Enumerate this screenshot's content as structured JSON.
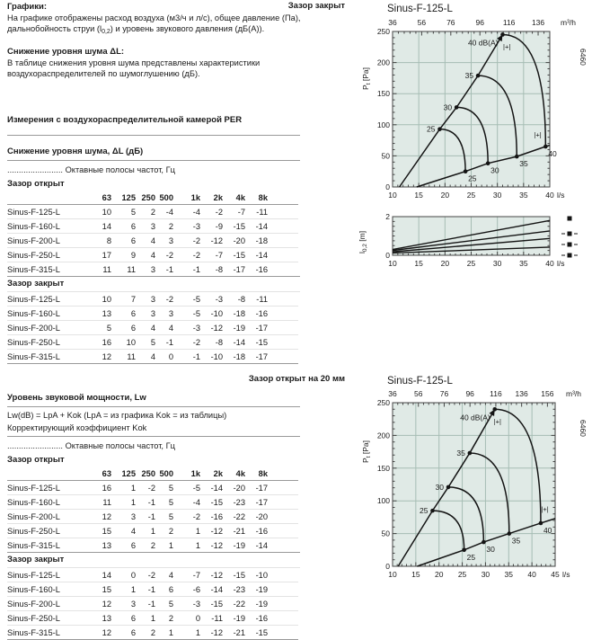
{
  "captions": {
    "top_right": "Зазор закрыт",
    "bottom_right": "Зазор открыт на 20 мм"
  },
  "intro": {
    "graphs_heading": "Графики:",
    "graphs_line1": "На графике отображены расход воздуха (м3/ч и л/с), общее давление (Па),",
    "graphs_line2_pre": "дальнобойность струи (l",
    "graphs_line2_sub": "0,2",
    "graphs_line2_post": ") и уровень звукового давления (дБ(А)).",
    "noise_heading": "Снижение уровня шума ΔL:",
    "noise_line1": "В таблице снижения уровня шума представлены характеристики",
    "noise_line2": "воздухораспределителей по шумоглушению (дБ).",
    "measurement_heading": "Измерения с воздухораспределительной камерой PER"
  },
  "octave_headers": [
    "63",
    "125",
    "250",
    "500",
    "1k",
    "2k",
    "4k",
    "8k"
  ],
  "table1": {
    "title": "Снижение уровня шума, ΔL (дБ)",
    "octave_note": "........................ Октавные полосы частот, Гц",
    "open_label": "Зазор открыт",
    "closed_label": "Зазор закрыт",
    "open_rows": [
      {
        "name": "Sinus-F-125-L",
        "values": [
          10,
          5,
          2,
          -4,
          -4,
          -2,
          -7,
          -11
        ]
      },
      {
        "name": "Sinus-F-160-L",
        "values": [
          14,
          6,
          3,
          2,
          -3,
          -9,
          -15,
          -14
        ]
      },
      {
        "name": "Sinus-F-200-L",
        "values": [
          8,
          6,
          4,
          3,
          -2,
          -12,
          -20,
          -18
        ]
      },
      {
        "name": "Sinus-F-250-L",
        "values": [
          17,
          9,
          4,
          -2,
          -2,
          -7,
          -15,
          -14
        ]
      },
      {
        "name": "Sinus-F-315-L",
        "values": [
          11,
          11,
          3,
          -1,
          -1,
          -8,
          -17,
          -16
        ]
      }
    ],
    "closed_rows": [
      {
        "name": "Sinus-F-125-L",
        "values": [
          10,
          7,
          3,
          -2,
          -5,
          -3,
          -8,
          -11
        ]
      },
      {
        "name": "Sinus-F-160-L",
        "values": [
          13,
          6,
          3,
          3,
          -5,
          -10,
          -18,
          -16
        ]
      },
      {
        "name": "Sinus-F-200-L",
        "values": [
          5,
          6,
          4,
          4,
          -3,
          -12,
          -19,
          -17
        ]
      },
      {
        "name": "Sinus-F-250-L",
        "values": [
          16,
          10,
          5,
          -1,
          -2,
          -8,
          -14,
          -15
        ]
      },
      {
        "name": "Sinus-F-315-L",
        "values": [
          12,
          11,
          4,
          0,
          -1,
          -10,
          -18,
          -17
        ]
      }
    ]
  },
  "table2": {
    "title": "Уровень звуковой мощности, Lw",
    "formula": "Lw(dB) = LpA + Kok (LpA = из графика Kok = из таблицы)",
    "kok_line": "Корректирующий коэффициент Kok",
    "octave_note": "........................ Октавные полосы частот, Гц",
    "open_label": "Зазор открыт",
    "closed_label": "Зазор закрыт",
    "open_rows": [
      {
        "name": "Sinus-F-125-L",
        "values": [
          16,
          1,
          -2,
          5,
          -5,
          -14,
          -20,
          -17
        ]
      },
      {
        "name": "Sinus-F-160-L",
        "values": [
          11,
          1,
          -1,
          5,
          -4,
          -15,
          -23,
          -17
        ]
      },
      {
        "name": "Sinus-F-200-L",
        "values": [
          12,
          3,
          -1,
          5,
          -2,
          -16,
          -22,
          -20
        ]
      },
      {
        "name": "Sinus-F-250-L",
        "values": [
          15,
          4,
          1,
          2,
          1,
          -12,
          -21,
          -16
        ]
      },
      {
        "name": "Sinus-F-315-L",
        "values": [
          13,
          6,
          2,
          1,
          1,
          -12,
          -19,
          -14
        ]
      }
    ],
    "closed_rows": [
      {
        "name": "Sinus-F-125-L",
        "values": [
          14,
          0,
          -2,
          4,
          -7,
          -12,
          -15,
          -10
        ]
      },
      {
        "name": "Sinus-F-160-L",
        "values": [
          15,
          1,
          -1,
          6,
          -6,
          -14,
          -23,
          -19
        ]
      },
      {
        "name": "Sinus-F-200-L",
        "values": [
          12,
          3,
          -1,
          5,
          -3,
          -15,
          -22,
          -19
        ]
      },
      {
        "name": "Sinus-F-250-L",
        "values": [
          13,
          6,
          1,
          2,
          0,
          -11,
          -19,
          -16
        ]
      },
      {
        "name": "Sinus-F-315-L",
        "values": [
          12,
          6,
          2,
          1,
          1,
          -12,
          -21,
          -15
        ]
      }
    ]
  },
  "colors": {
    "plot_bg": "#e0eae6",
    "grid": "#a6bdb4",
    "axis": "#444444",
    "curve": "#141414",
    "text": "#1a1a1a"
  },
  "chart_data": [
    {
      "id": "fan_top",
      "type": "line",
      "title": "Sinus-F-125-L",
      "doc_number": "6460",
      "x_axis": {
        "unit": "l/s",
        "min": 10,
        "max": 40,
        "major_ticks": [
          10,
          15,
          20,
          25,
          30,
          35,
          40
        ]
      },
      "x_axis_top": {
        "unit": "m³/h",
        "ticks": [
          36,
          56,
          76,
          96,
          116,
          136
        ],
        "l_per_s_factor": 3.6
      },
      "y_axis": {
        "label_main": "P",
        "label_sub": "t",
        "label_unit": " [Pa]",
        "min": 0,
        "max": 250,
        "major_ticks": [
          0,
          50,
          100,
          150,
          200,
          250
        ]
      },
      "upper_line": [
        [
          11.3,
          0
        ],
        [
          19,
          93
        ],
        [
          22.2,
          128
        ],
        [
          26.3,
          179
        ],
        [
          31,
          245
        ]
      ],
      "lower_line": [
        [
          14.6,
          0
        ],
        [
          23.9,
          25
        ],
        [
          28.2,
          38
        ],
        [
          33.7,
          49
        ],
        [
          39.2,
          65
        ],
        [
          40,
          67
        ]
      ],
      "db_curves": [
        {
          "db_label_upper": "25",
          "db_label_lower": "25",
          "upper": [
            19,
            93
          ],
          "lower": [
            23.9,
            25
          ]
        },
        {
          "db_label_upper": "30",
          "db_label_lower": "30",
          "upper": [
            22.2,
            128
          ],
          "lower": [
            28.2,
            38
          ]
        },
        {
          "db_label_upper": "35",
          "db_label_lower": "35",
          "upper": [
            26.3,
            179
          ],
          "lower": [
            33.7,
            49
          ]
        },
        {
          "db_label_upper": "40 dB(A)",
          "db_label_lower": "40",
          "upper": [
            31,
            245
          ],
          "lower": [
            39.2,
            65
          ]
        }
      ],
      "plus_label": "|+|",
      "plus_markers": [
        [
          31.8,
          222
        ],
        [
          37.7,
          80
        ]
      ]
    },
    {
      "id": "jet",
      "type": "line",
      "y_axis": {
        "label_main": "l",
        "label_sub": "0,2",
        "label_unit": " [m]",
        "min": 0,
        "max": 2,
        "major_ticks": [
          0,
          2
        ]
      },
      "x_axis": {
        "unit": "l/s",
        "min": 10,
        "max": 40,
        "major_ticks": [
          10,
          15,
          20,
          25,
          30,
          35,
          40
        ]
      },
      "lines": [
        [
          [
            10,
            0.3
          ],
          [
            40,
            1.8
          ]
        ],
        [
          [
            10,
            0.25
          ],
          [
            40,
            1.26
          ]
        ],
        [
          [
            10,
            0.18
          ],
          [
            40,
            0.87
          ]
        ],
        [
          [
            10,
            0.12
          ],
          [
            40,
            0.42
          ]
        ]
      ],
      "legend_markers": [
        "square",
        "square-dashed",
        "square-dashed",
        "square-dashed"
      ]
    },
    {
      "id": "fan_bottom",
      "type": "line",
      "title": "Sinus-F-125-L",
      "doc_number": "6460",
      "x_axis": {
        "unit": "l/s",
        "min": 10,
        "max": 45,
        "major_ticks": [
          10,
          15,
          20,
          25,
          30,
          35,
          40,
          45
        ]
      },
      "x_axis_top": {
        "unit": "m³/h",
        "ticks": [
          36,
          56,
          76,
          96,
          116,
          136,
          156
        ],
        "l_per_s_factor": 3.6
      },
      "y_axis": {
        "label_main": "P",
        "label_sub": "t",
        "label_unit": " [Pa]",
        "min": 0,
        "max": 250,
        "major_ticks": [
          0,
          50,
          100,
          150,
          200,
          250
        ]
      },
      "upper_line": [
        [
          11.2,
          0
        ],
        [
          18.6,
          85
        ],
        [
          22,
          121
        ],
        [
          26.6,
          173
        ],
        [
          32,
          240
        ]
      ],
      "lower_line": [
        [
          15.3,
          0
        ],
        [
          25.4,
          25
        ],
        [
          29.6,
          37
        ],
        [
          35.1,
          50
        ],
        [
          41.9,
          66
        ],
        [
          45,
          73
        ]
      ],
      "db_curves": [
        {
          "db_label_upper": "25",
          "db_label_lower": "25",
          "upper": [
            18.6,
            85
          ],
          "lower": [
            25.4,
            25
          ]
        },
        {
          "db_label_upper": "30",
          "db_label_lower": "30",
          "upper": [
            22,
            121
          ],
          "lower": [
            29.6,
            37
          ]
        },
        {
          "db_label_upper": "35",
          "db_label_lower": "35",
          "upper": [
            26.6,
            173
          ],
          "lower": [
            35.1,
            50
          ]
        },
        {
          "db_label_upper": "40 dB(A)",
          "db_label_lower": "40",
          "upper": [
            32,
            240
          ],
          "lower": [
            41.9,
            66
          ]
        }
      ],
      "plus_label": "|+|",
      "plus_markers": [
        [
          32.6,
          218
        ],
        [
          42.8,
          84
        ]
      ]
    }
  ]
}
